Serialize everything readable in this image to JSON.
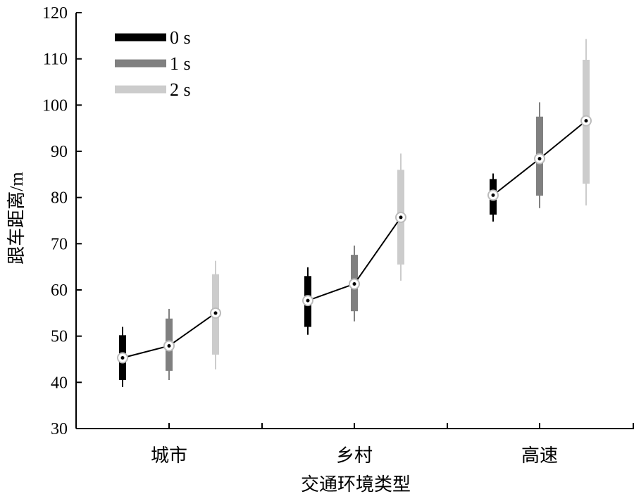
{
  "chart_data": {
    "type": "boxplot",
    "title": "",
    "xlabel": "交通环境类型",
    "ylabel": "跟车距离/m",
    "ylim": [
      30,
      120
    ],
    "yticks": [
      30,
      40,
      50,
      60,
      70,
      80,
      90,
      100,
      110,
      120
    ],
    "categories": [
      "城市",
      "乡村",
      "高速"
    ],
    "legend_position": "top-left",
    "series": [
      {
        "name": "0 s",
        "color": "#000000",
        "whisker_low": [
          39,
          50.3,
          74.8
        ],
        "box_low": [
          40.5,
          52,
          76.3
        ],
        "box_high": [
          50.2,
          63,
          84
        ],
        "whisker_high": [
          52,
          64.9,
          85.2
        ],
        "mean": [
          45.3,
          57.7,
          80.5
        ]
      },
      {
        "name": "1 s",
        "color": "#808080",
        "whisker_low": [
          40.5,
          53.2,
          77.7
        ],
        "box_low": [
          42.5,
          55.4,
          80.4
        ],
        "box_high": [
          53.8,
          67.6,
          97.5
        ],
        "whisker_high": [
          55.9,
          69.6,
          100.6
        ],
        "mean": [
          47.9,
          61.3,
          88.4
        ]
      },
      {
        "name": "2 s",
        "color": "#cccccc",
        "whisker_low": [
          42.8,
          62,
          78.3
        ],
        "box_low": [
          46,
          65.5,
          83
        ],
        "box_high": [
          63.4,
          86,
          109.8
        ],
        "whisker_high": [
          66.3,
          89.5,
          114.3
        ],
        "mean": [
          55,
          75.7,
          96.6
        ]
      }
    ]
  }
}
